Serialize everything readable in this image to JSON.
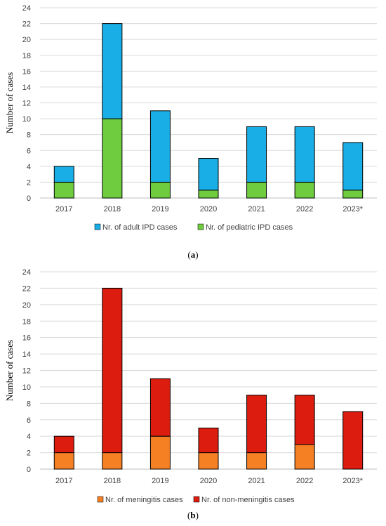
{
  "chart_data": [
    {
      "type": "bar",
      "stacked": true,
      "categories": [
        "2017",
        "2018",
        "2019",
        "2020",
        "2021",
        "2022",
        "2023*"
      ],
      "series": [
        {
          "name": "Nr. of adult IPD cases",
          "values": [
            2,
            12,
            9,
            4,
            7,
            7,
            6
          ],
          "color": "#19aee5"
        },
        {
          "name": "Nr. of pediatric IPD cases",
          "values": [
            2,
            10,
            2,
            1,
            2,
            2,
            1
          ],
          "color": "#6fcc3f"
        }
      ],
      "stack_order": [
        1,
        0
      ],
      "ylabel": "Number of cases",
      "ylim": [
        0,
        24
      ],
      "yticks": [
        0,
        2,
        4,
        6,
        8,
        10,
        12,
        14,
        16,
        18,
        20,
        22,
        24
      ],
      "grid": true,
      "legend": "bottom",
      "caption": "(a)"
    },
    {
      "type": "bar",
      "stacked": true,
      "categories": [
        "2017",
        "2018",
        "2019",
        "2020",
        "2021",
        "2022",
        "2023*"
      ],
      "series": [
        {
          "name": "Nr. of meningitis cases",
          "values": [
            2,
            2,
            4,
            2,
            2,
            3,
            0
          ],
          "color": "#f58024"
        },
        {
          "name": "Nr. of non-meningitis cases",
          "values": [
            2,
            20,
            7,
            3,
            7,
            6,
            7
          ],
          "color": "#dc1c0f"
        }
      ],
      "stack_order": [
        0,
        1
      ],
      "ylabel": "Number of cases",
      "ylim": [
        0,
        24
      ],
      "yticks": [
        0,
        2,
        4,
        6,
        8,
        10,
        12,
        14,
        16,
        18,
        20,
        22,
        24
      ],
      "grid": true,
      "legend": "bottom",
      "caption": "(b)"
    }
  ]
}
